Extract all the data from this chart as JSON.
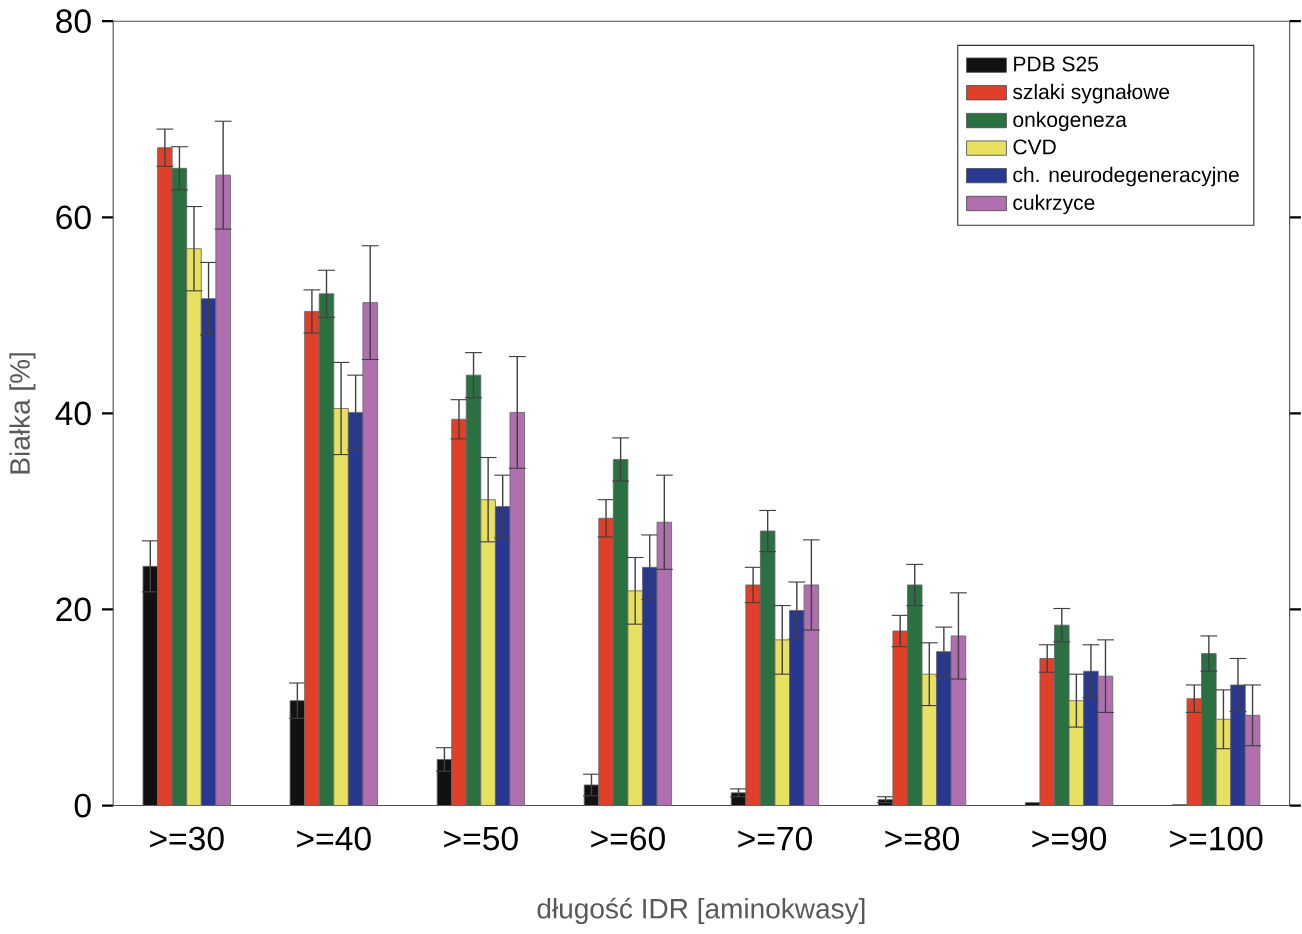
{
  "chart_data": {
    "type": "bar",
    "xlabel": "długość IDR [aminokwasy]",
    "ylabel": "Białka [%]",
    "categories": [
      ">=30",
      ">=40",
      ">=50",
      ">=60",
      ">=70",
      ">=80",
      ">=90",
      ">=100"
    ],
    "ylim": [
      0,
      80
    ],
    "yticks": [
      0,
      20,
      40,
      60,
      80
    ],
    "grid": false,
    "legend": "top right",
    "series": [
      {
        "name": "PDB S25",
        "color": "#111111",
        "values": [
          24.4,
          10.7,
          4.7,
          2.1,
          1.3,
          0.6,
          0.3,
          0.1
        ],
        "errors": [
          2.6,
          1.8,
          1.2,
          1.1,
          0.4,
          0.3,
          null,
          null
        ]
      },
      {
        "name": "szlaki sygnałowe",
        "color": "#e0402a",
        "values": [
          67.1,
          50.4,
          39.4,
          29.3,
          22.5,
          17.8,
          15.0,
          10.9
        ],
        "errors": [
          1.9,
          2.2,
          2.0,
          1.9,
          1.8,
          1.6,
          1.4,
          1.4
        ]
      },
      {
        "name": "onkogeneza",
        "color": "#2a7040",
        "values": [
          65.0,
          52.2,
          43.9,
          35.3,
          28.0,
          22.5,
          18.4,
          15.5
        ],
        "errors": [
          2.2,
          2.4,
          2.3,
          2.2,
          2.1,
          2.1,
          1.7,
          1.8
        ]
      },
      {
        "name": "CVD",
        "color": "#e8e060",
        "values": [
          56.8,
          40.5,
          31.2,
          21.9,
          16.9,
          13.4,
          10.7,
          8.8
        ],
        "errors": [
          4.3,
          4.7,
          4.3,
          3.4,
          3.5,
          3.2,
          2.7,
          3.0
        ]
      },
      {
        "name": "ch. neurodegeneracyjne",
        "color": "#283890",
        "values": [
          51.7,
          40.1,
          30.5,
          24.3,
          19.9,
          15.7,
          13.7,
          12.3
        ],
        "errors": [
          3.7,
          3.8,
          3.2,
          3.3,
          2.9,
          2.5,
          2.7,
          2.7
        ]
      },
      {
        "name": "cukrzyce",
        "color": "#b070b0",
        "values": [
          64.3,
          51.3,
          40.1,
          28.9,
          22.5,
          17.3,
          13.2,
          9.2
        ],
        "errors": [
          5.5,
          5.8,
          5.7,
          4.8,
          4.6,
          4.4,
          3.7,
          3.1
        ]
      }
    ]
  }
}
